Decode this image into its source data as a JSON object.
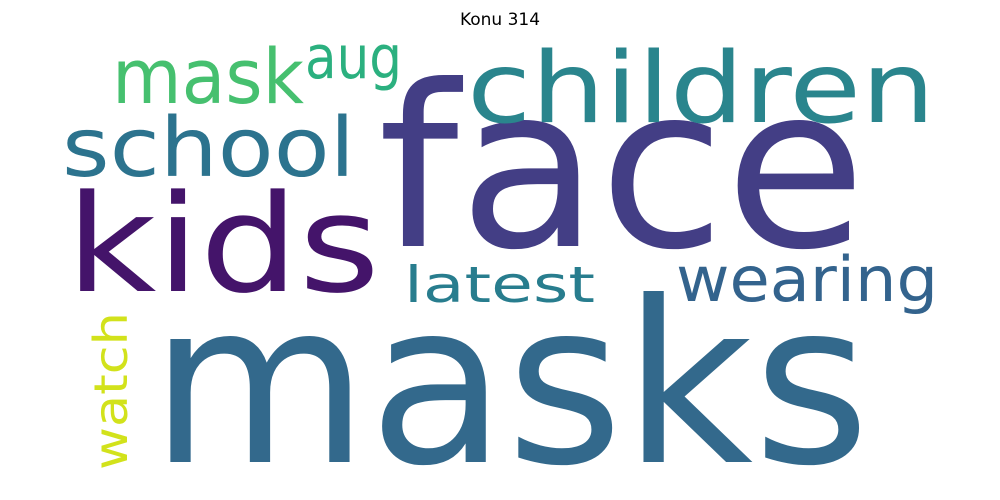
{
  "title": "Konu 314",
  "words": [
    {
      "text": "masks",
      "color": "#33698c",
      "orientation": "horizontal"
    },
    {
      "text": "face",
      "color": "#433e85",
      "orientation": "horizontal"
    },
    {
      "text": "kids",
      "color": "#44146a",
      "orientation": "horizontal"
    },
    {
      "text": "children",
      "color": "#2a858d",
      "orientation": "horizontal"
    },
    {
      "text": "school",
      "color": "#2c738e",
      "orientation": "horizontal"
    },
    {
      "text": "mask",
      "color": "#46c06f",
      "orientation": "horizontal"
    },
    {
      "text": "aug",
      "color": "#2bb07f",
      "orientation": "horizontal"
    },
    {
      "text": "wearing",
      "color": "#33638d",
      "orientation": "horizontal"
    },
    {
      "text": "latest",
      "color": "#287d8e",
      "orientation": "horizontal"
    },
    {
      "text": "watch",
      "color": "#d2e21b",
      "orientation": "vertical"
    }
  ]
}
